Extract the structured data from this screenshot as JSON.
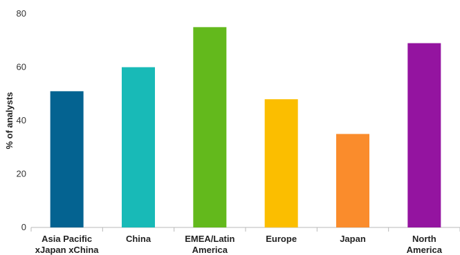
{
  "chart_data": {
    "type": "bar",
    "title": "",
    "xlabel": "",
    "ylabel": "% of analysts",
    "ylim": [
      0,
      80
    ],
    "yticks": [
      0,
      20,
      40,
      60,
      80
    ],
    "grid": false,
    "categories": [
      [
        "Asia Pacific",
        "xJapan xChina"
      ],
      [
        "China"
      ],
      [
        "EMEA/Latin",
        "America"
      ],
      [
        "Europe"
      ],
      [
        "Japan"
      ],
      [
        "North",
        "America"
      ]
    ],
    "values": [
      51,
      60,
      75,
      48,
      35,
      69
    ],
    "colors": [
      "#046391",
      "#18BAB7",
      "#63B91C",
      "#FBBE00",
      "#FA8C2C",
      "#9414A0"
    ]
  }
}
